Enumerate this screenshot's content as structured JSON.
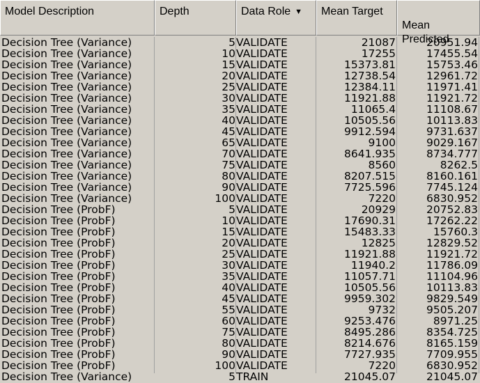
{
  "columns": [
    {
      "label": "Model Description"
    },
    {
      "label": "Depth"
    },
    {
      "label": "Data Role",
      "sort_icon": "sort-desc-icon"
    },
    {
      "label": "Mean Target"
    },
    {
      "label": "Mean\nPredicted"
    }
  ],
  "rows": [
    {
      "model": "Decision Tree (Variance)",
      "depth": "5",
      "role": "VALIDATE",
      "mean_target": "21087",
      "mean_predicted": "20951.94"
    },
    {
      "model": "Decision Tree (Variance)",
      "depth": "10",
      "role": "VALIDATE",
      "mean_target": "17255",
      "mean_predicted": "17455.54"
    },
    {
      "model": "Decision Tree (Variance)",
      "depth": "15",
      "role": "VALIDATE",
      "mean_target": "15373.81",
      "mean_predicted": "15753.46"
    },
    {
      "model": "Decision Tree (Variance)",
      "depth": "20",
      "role": "VALIDATE",
      "mean_target": "12738.54",
      "mean_predicted": "12961.72"
    },
    {
      "model": "Decision Tree (Variance)",
      "depth": "25",
      "role": "VALIDATE",
      "mean_target": "12384.11",
      "mean_predicted": "11971.41"
    },
    {
      "model": "Decision Tree (Variance)",
      "depth": "30",
      "role": "VALIDATE",
      "mean_target": "11921.88",
      "mean_predicted": "11921.72"
    },
    {
      "model": "Decision Tree (Variance)",
      "depth": "35",
      "role": "VALIDATE",
      "mean_target": "11065.4",
      "mean_predicted": "11108.67"
    },
    {
      "model": "Decision Tree (Variance)",
      "depth": "40",
      "role": "VALIDATE",
      "mean_target": "10505.56",
      "mean_predicted": "10113.83"
    },
    {
      "model": "Decision Tree (Variance)",
      "depth": "45",
      "role": "VALIDATE",
      "mean_target": "9912.594",
      "mean_predicted": "9731.637"
    },
    {
      "model": "Decision Tree (Variance)",
      "depth": "65",
      "role": "VALIDATE",
      "mean_target": "9100",
      "mean_predicted": "9029.167"
    },
    {
      "model": "Decision Tree (Variance)",
      "depth": "70",
      "role": "VALIDATE",
      "mean_target": "8641.935",
      "mean_predicted": "8734.777"
    },
    {
      "model": "Decision Tree (Variance)",
      "depth": "75",
      "role": "VALIDATE",
      "mean_target": "8560",
      "mean_predicted": "8262.5"
    },
    {
      "model": "Decision Tree (Variance)",
      "depth": "80",
      "role": "VALIDATE",
      "mean_target": "8207.515",
      "mean_predicted": "8160.161"
    },
    {
      "model": "Decision Tree (Variance)",
      "depth": "90",
      "role": "VALIDATE",
      "mean_target": "7725.596",
      "mean_predicted": "7745.124"
    },
    {
      "model": "Decision Tree (Variance)",
      "depth": "100",
      "role": "VALIDATE",
      "mean_target": "7220",
      "mean_predicted": "6830.952"
    },
    {
      "model": "Decision Tree (ProbF)",
      "depth": "5",
      "role": "VALIDATE",
      "mean_target": "20929",
      "mean_predicted": "20752.83"
    },
    {
      "model": "Decision Tree (ProbF)",
      "depth": "10",
      "role": "VALIDATE",
      "mean_target": "17690.31",
      "mean_predicted": "17262.22"
    },
    {
      "model": "Decision Tree (ProbF)",
      "depth": "15",
      "role": "VALIDATE",
      "mean_target": "15483.33",
      "mean_predicted": "15760.3"
    },
    {
      "model": "Decision Tree (ProbF)",
      "depth": "20",
      "role": "VALIDATE",
      "mean_target": "12825",
      "mean_predicted": "12829.52"
    },
    {
      "model": "Decision Tree (ProbF)",
      "depth": "25",
      "role": "VALIDATE",
      "mean_target": "11921.88",
      "mean_predicted": "11921.72"
    },
    {
      "model": "Decision Tree (ProbF)",
      "depth": "30",
      "role": "VALIDATE",
      "mean_target": "11940.2",
      "mean_predicted": "11786.09"
    },
    {
      "model": "Decision Tree (ProbF)",
      "depth": "35",
      "role": "VALIDATE",
      "mean_target": "11057.71",
      "mean_predicted": "11104.96"
    },
    {
      "model": "Decision Tree (ProbF)",
      "depth": "40",
      "role": "VALIDATE",
      "mean_target": "10505.56",
      "mean_predicted": "10113.83"
    },
    {
      "model": "Decision Tree (ProbF)",
      "depth": "45",
      "role": "VALIDATE",
      "mean_target": "9959.302",
      "mean_predicted": "9829.549"
    },
    {
      "model": "Decision Tree (ProbF)",
      "depth": "55",
      "role": "VALIDATE",
      "mean_target": "9732",
      "mean_predicted": "9505.207"
    },
    {
      "model": "Decision Tree (ProbF)",
      "depth": "60",
      "role": "VALIDATE",
      "mean_target": "9253.476",
      "mean_predicted": "8971.25"
    },
    {
      "model": "Decision Tree (ProbF)",
      "depth": "75",
      "role": "VALIDATE",
      "mean_target": "8495.286",
      "mean_predicted": "8354.725"
    },
    {
      "model": "Decision Tree (ProbF)",
      "depth": "80",
      "role": "VALIDATE",
      "mean_target": "8214.676",
      "mean_predicted": "8165.159"
    },
    {
      "model": "Decision Tree (ProbF)",
      "depth": "90",
      "role": "VALIDATE",
      "mean_target": "7727.935",
      "mean_predicted": "7709.955"
    },
    {
      "model": "Decision Tree (ProbF)",
      "depth": "100",
      "role": "VALIDATE",
      "mean_target": "7220",
      "mean_predicted": "6830.952"
    },
    {
      "model": "Decision Tree (Variance)",
      "depth": "5",
      "role": "TRAIN",
      "mean_target": "21045.07",
      "mean_predicted": "21045.07"
    }
  ]
}
